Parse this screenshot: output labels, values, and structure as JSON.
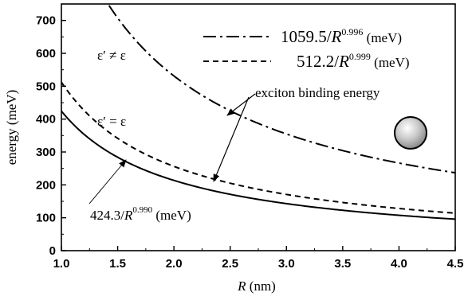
{
  "chart_data": {
    "type": "line",
    "xlabel": "R (nm)",
    "ylabel": "energy (meV)",
    "xlim": [
      1.0,
      4.5
    ],
    "ylim": [
      0,
      750
    ],
    "xticks": [
      "1.0",
      "1.5",
      "2.0",
      "2.5",
      "3.0",
      "3.5",
      "4.0",
      "4.5"
    ],
    "yticks": [
      "0",
      "100",
      "200",
      "300",
      "400",
      "500",
      "600",
      "700"
    ],
    "grid": false,
    "legend_position": "top-right",
    "series": [
      {
        "name": "1059.5/R^0.996 (meV)",
        "style": "dash-dot",
        "coef": 1059.5,
        "exponent": 0.996
      },
      {
        "name": "512.2/R^0.999 (meV)",
        "style": "dashed",
        "coef": 512.2,
        "exponent": 0.999
      },
      {
        "name": "424.3/R^0.990 (meV)",
        "style": "solid",
        "coef": 424.3,
        "exponent": 0.99
      }
    ],
    "legend": [
      {
        "coef_text": "1059.5/",
        "var": "R",
        "exp": "0.996",
        "unit": " (meV)"
      },
      {
        "coef_text": "512.2/",
        "var": "R",
        "exp": "0.999",
        "unit": " (meV)"
      }
    ],
    "annotations": {
      "eps_neq": "ε′ ≠ ε",
      "eps_eq": "ε′ = ε",
      "binding": "exciton binding energy",
      "fit": {
        "coef_text": "424.3/",
        "var": "R",
        "exp": "0.990",
        "unit": " (meV)"
      }
    }
  }
}
